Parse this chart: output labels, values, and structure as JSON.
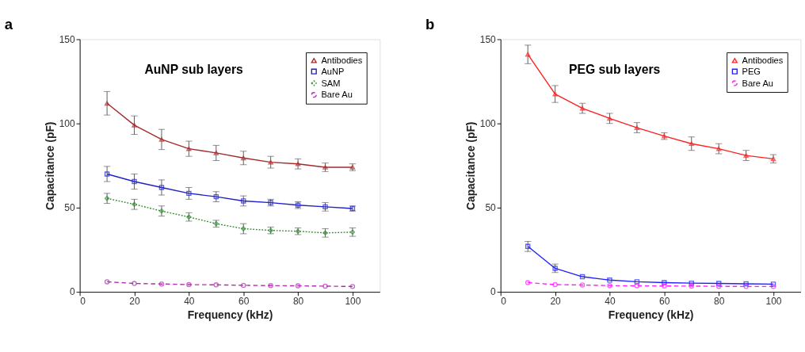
{
  "chart_data": [
    {
      "type": "line",
      "title": "AuNP sub layers",
      "annotations": [
        "a"
      ],
      "xlabel": "Frequency (kHz)",
      "ylabel": "Capacitance (pF)",
      "x": [
        10,
        20,
        30,
        40,
        50,
        60,
        70,
        80,
        90,
        100
      ],
      "xlim": [
        0,
        110
      ],
      "xticks": [
        0,
        20,
        40,
        60,
        80,
        100
      ],
      "ylim": [
        0,
        150
      ],
      "yticks": [
        0,
        50,
        100,
        150
      ],
      "grid": false,
      "legend": "top right",
      "series": [
        {
          "name": "Antibodies",
          "color": "#a52a2a",
          "marker": "triangle",
          "line_style": "solid",
          "values": [
            112,
            99,
            90.5,
            85,
            82.5,
            79.5,
            77,
            76,
            74,
            74
          ],
          "errors": [
            7,
            5.5,
            6,
            4.5,
            4.5,
            4,
            3.5,
            3,
            2.5,
            2
          ]
        },
        {
          "name": "AuNP",
          "color": "#2020c8",
          "marker": "square",
          "line_style": "solid",
          "values": [
            70,
            65.5,
            62,
            58.5,
            56.5,
            54,
            53,
            51.5,
            50.5,
            49.5
          ],
          "errors": [
            4.5,
            4.5,
            4.5,
            3.5,
            3,
            3,
            2,
            2,
            2.5,
            1.5
          ]
        },
        {
          "name": "SAM",
          "color": "#2e8b2e",
          "marker": "diamond",
          "line_style": "dotted",
          "values": [
            55.5,
            52,
            48,
            44.5,
            40.5,
            37.5,
            36.5,
            36,
            35,
            35.5
          ],
          "errors": [
            3,
            3,
            3,
            2.5,
            2,
            3,
            2,
            2,
            2.5,
            2.5
          ]
        },
        {
          "name": "Bare Au",
          "color": "#b030b0",
          "marker": "circle",
          "line_style": "dashed",
          "values": [
            6,
            5,
            4.7,
            4.3,
            4.2,
            3.9,
            3.7,
            3.6,
            3.4,
            3.2
          ]
        }
      ]
    },
    {
      "type": "line",
      "title": "PEG sub layers",
      "annotations": [
        "b"
      ],
      "xlabel": "Frequency (kHz)",
      "ylabel": "Capacitance (pF)",
      "x": [
        10,
        20,
        30,
        40,
        50,
        60,
        70,
        80,
        90,
        100
      ],
      "xlim": [
        0,
        110
      ],
      "xticks": [
        0,
        20,
        40,
        60,
        80,
        100
      ],
      "ylim": [
        0,
        150
      ],
      "yticks": [
        0,
        50,
        100,
        150
      ],
      "grid": false,
      "legend": "top right",
      "series": [
        {
          "name": "Antibodies",
          "color": "#ff2020",
          "marker": "triangle",
          "line_style": "solid",
          "values": [
            141,
            117.5,
            109,
            103,
            97.5,
            92.5,
            88,
            85,
            81,
            79
          ],
          "errors": [
            5.5,
            5,
            3,
            3,
            3,
            2,
            4,
            3,
            3,
            2.5
          ]
        },
        {
          "name": "PEG",
          "color": "#2020ff",
          "marker": "square",
          "line_style": "solid",
          "values": [
            27,
            14,
            9,
            7,
            6,
            5.5,
            5.2,
            5,
            4.8,
            4.6
          ],
          "errors": [
            3,
            2.5,
            null,
            null,
            null,
            null,
            null,
            null,
            null,
            null
          ]
        },
        {
          "name": "Bare Au",
          "color": "#ff20ff",
          "marker": "circle",
          "line_style": "dashed",
          "values": [
            5.5,
            4.3,
            4.1,
            3.7,
            3.6,
            3.5,
            3.4,
            3.3,
            3.2,
            3.2
          ]
        }
      ]
    }
  ]
}
